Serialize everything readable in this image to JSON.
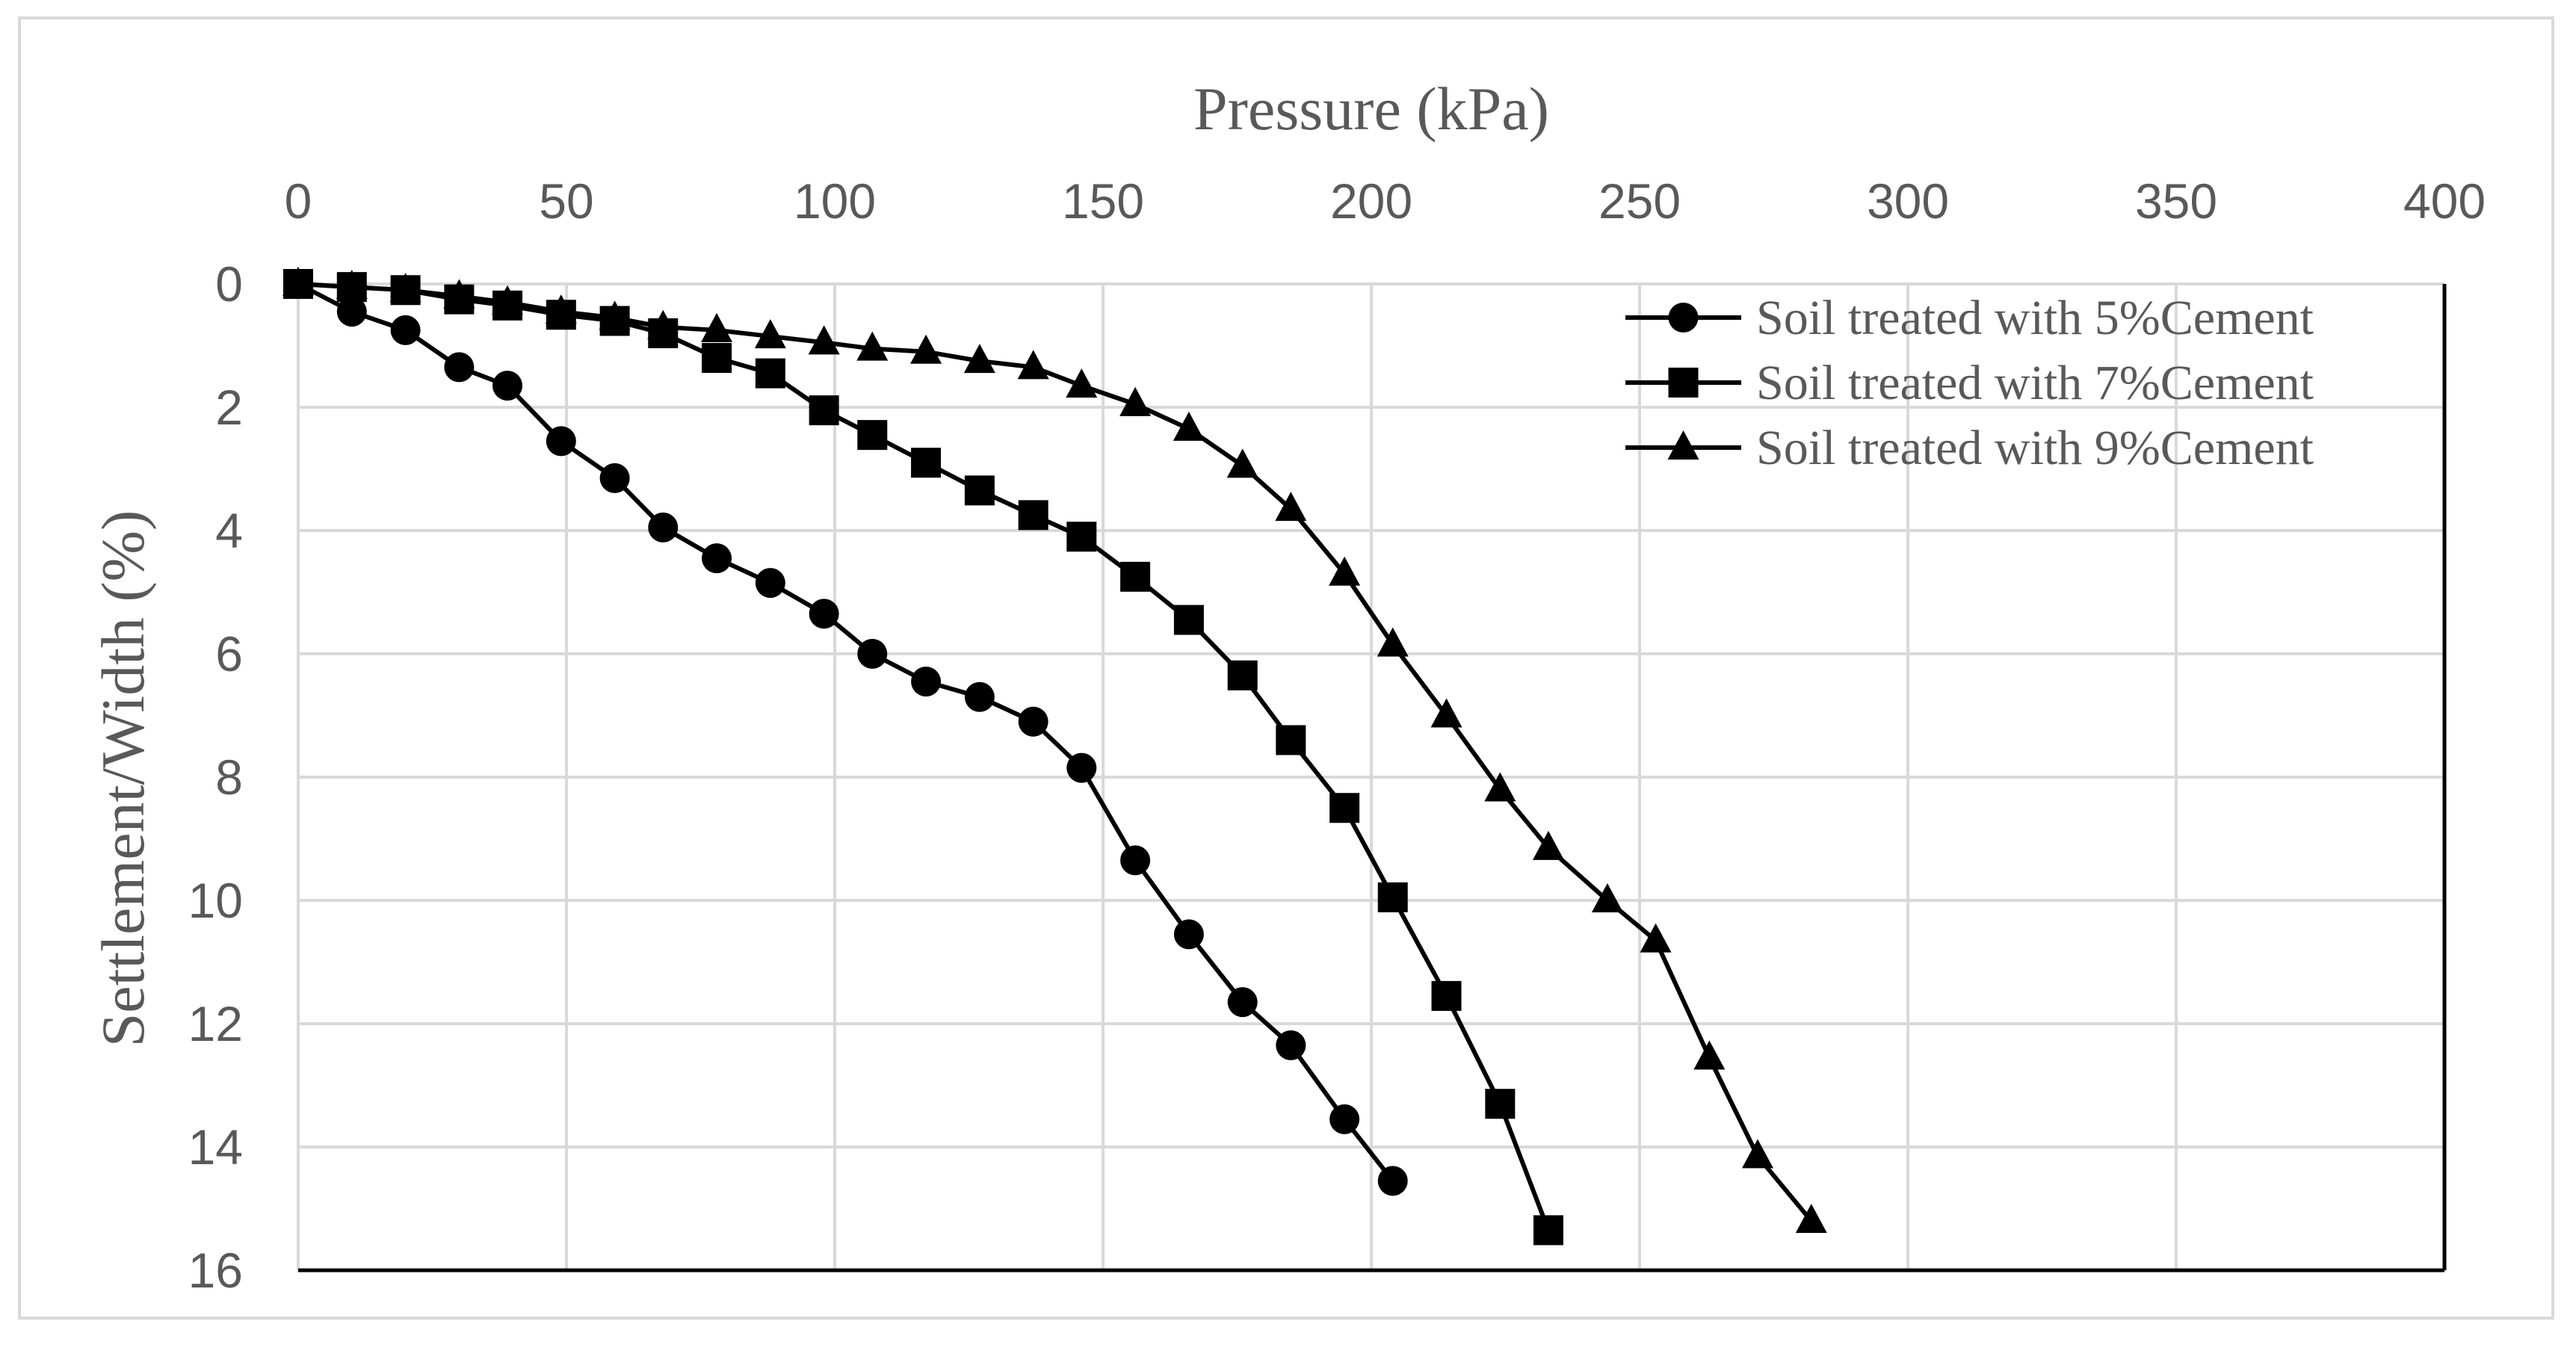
{
  "chart_data": {
    "type": "line",
    "title": "",
    "xlabel": "Pressure (kPa)",
    "ylabel": "Settlement/Width (%)",
    "xlim": [
      0,
      400
    ],
    "ylim": [
      0,
      16
    ],
    "y_inverted": true,
    "x_axis_position": "top",
    "grid": true,
    "legend_position": "top-right",
    "xticks": [
      "0",
      "50",
      "100",
      "150",
      "200",
      "250",
      "300",
      "350",
      "400"
    ],
    "yticks": [
      "0",
      "2",
      "4",
      "6",
      "8",
      "10",
      "12",
      "14",
      "16"
    ],
    "series": [
      {
        "name": "Soil treated with 5%Cement",
        "marker": "circle",
        "x": [
          0,
          10,
          20,
          30,
          39,
          49,
          59,
          68,
          78,
          88,
          98,
          107,
          117,
          127,
          137,
          146,
          156,
          166,
          176,
          185,
          195,
          204
        ],
        "y": [
          0,
          0.45,
          0.75,
          1.35,
          1.65,
          2.55,
          3.15,
          3.95,
          4.45,
          4.85,
          5.35,
          6.0,
          6.45,
          6.7,
          7.1,
          7.85,
          9.35,
          10.55,
          11.65,
          12.35,
          13.55,
          14.55
        ]
      },
      {
        "name": "Soil treated with 7%Cement",
        "marker": "square",
        "x": [
          0,
          10,
          20,
          30,
          39,
          49,
          59,
          68,
          78,
          88,
          98,
          107,
          117,
          127,
          137,
          146,
          156,
          166,
          176,
          185,
          195,
          204,
          214,
          224,
          233
        ],
        "y": [
          0,
          0.05,
          0.1,
          0.25,
          0.35,
          0.5,
          0.6,
          0.8,
          1.2,
          1.45,
          2.05,
          2.45,
          2.9,
          3.35,
          3.75,
          4.1,
          4.75,
          5.45,
          6.35,
          7.4,
          8.5,
          9.95,
          11.55,
          13.3,
          15.35
        ]
      },
      {
        "name": "Soil treated with 9%Cement",
        "marker": "triangle",
        "x": [
          0,
          10,
          20,
          30,
          39,
          49,
          59,
          68,
          78,
          88,
          98,
          107,
          117,
          127,
          137,
          146,
          156,
          166,
          176,
          185,
          195,
          204,
          214,
          224,
          233,
          244,
          253,
          263,
          272,
          282
        ],
        "y": [
          0,
          0.05,
          0.1,
          0.2,
          0.3,
          0.45,
          0.55,
          0.7,
          0.75,
          0.85,
          0.95,
          1.05,
          1.1,
          1.25,
          1.35,
          1.65,
          1.95,
          2.35,
          2.95,
          3.65,
          4.7,
          5.85,
          7.0,
          8.2,
          9.15,
          10.0,
          10.65,
          12.55,
          14.15,
          15.2
        ]
      }
    ]
  }
}
